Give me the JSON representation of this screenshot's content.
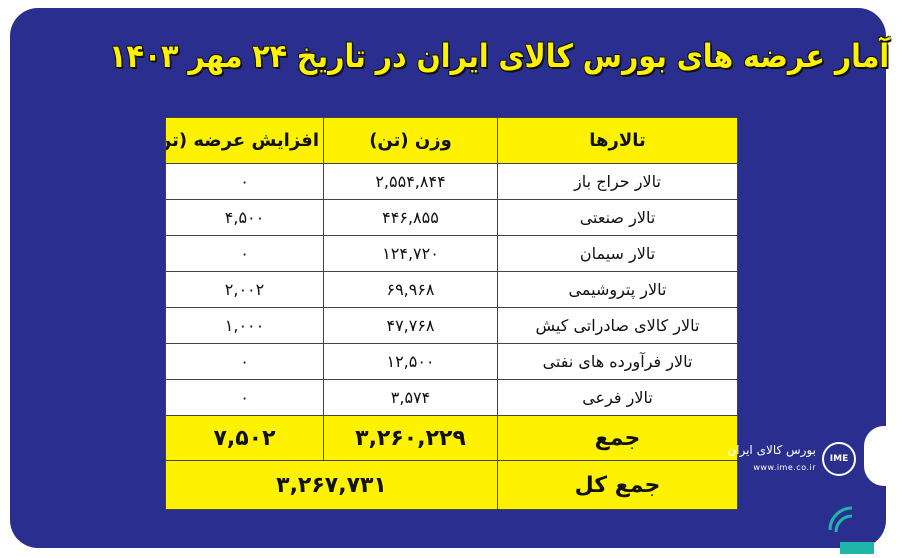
{
  "title": "آمار عرضه های بورس کالای ایران در تاریخ ۲۴ مهر ۱۴۰۳",
  "table": {
    "headers": [
      "تالارها",
      "وزن (تن)",
      "افزایش عرضه (تن)"
    ],
    "rows": [
      [
        "تالار حراج باز",
        "۲,۵۵۴,۸۴۴",
        "۰"
      ],
      [
        "تالار صنعتی",
        "۴۴۶,۸۵۵",
        "۴,۵۰۰"
      ],
      [
        "تالار سیمان",
        "۱۲۴,۷۲۰",
        "۰"
      ],
      [
        "تالار پتروشیمی",
        "۶۹,۹۶۸",
        "۲,۰۰۲"
      ],
      [
        "تالار کالای صادراتی کیش",
        "۴۷,۷۶۸",
        "۱,۰۰۰"
      ],
      [
        "تالار فرآورده های نفتی",
        "۱۲,۵۰۰",
        "۰"
      ],
      [
        "تالار فرعی",
        "۳,۵۷۴",
        "۰"
      ]
    ],
    "sum": [
      "جمع",
      "۳,۲۶۰,۲۲۹",
      "۷,۵۰۲"
    ],
    "total": [
      "جمع کل",
      "۳,۲۶۷,۷۳۱"
    ]
  },
  "logo": {
    "name": "بورس کالای ایران",
    "url": "www.ime.co.ir",
    "emblem": "IME"
  },
  "colors": {
    "background": "#2a2f8f",
    "highlight": "#fff200",
    "watermark": "#1fb5a8"
  }
}
